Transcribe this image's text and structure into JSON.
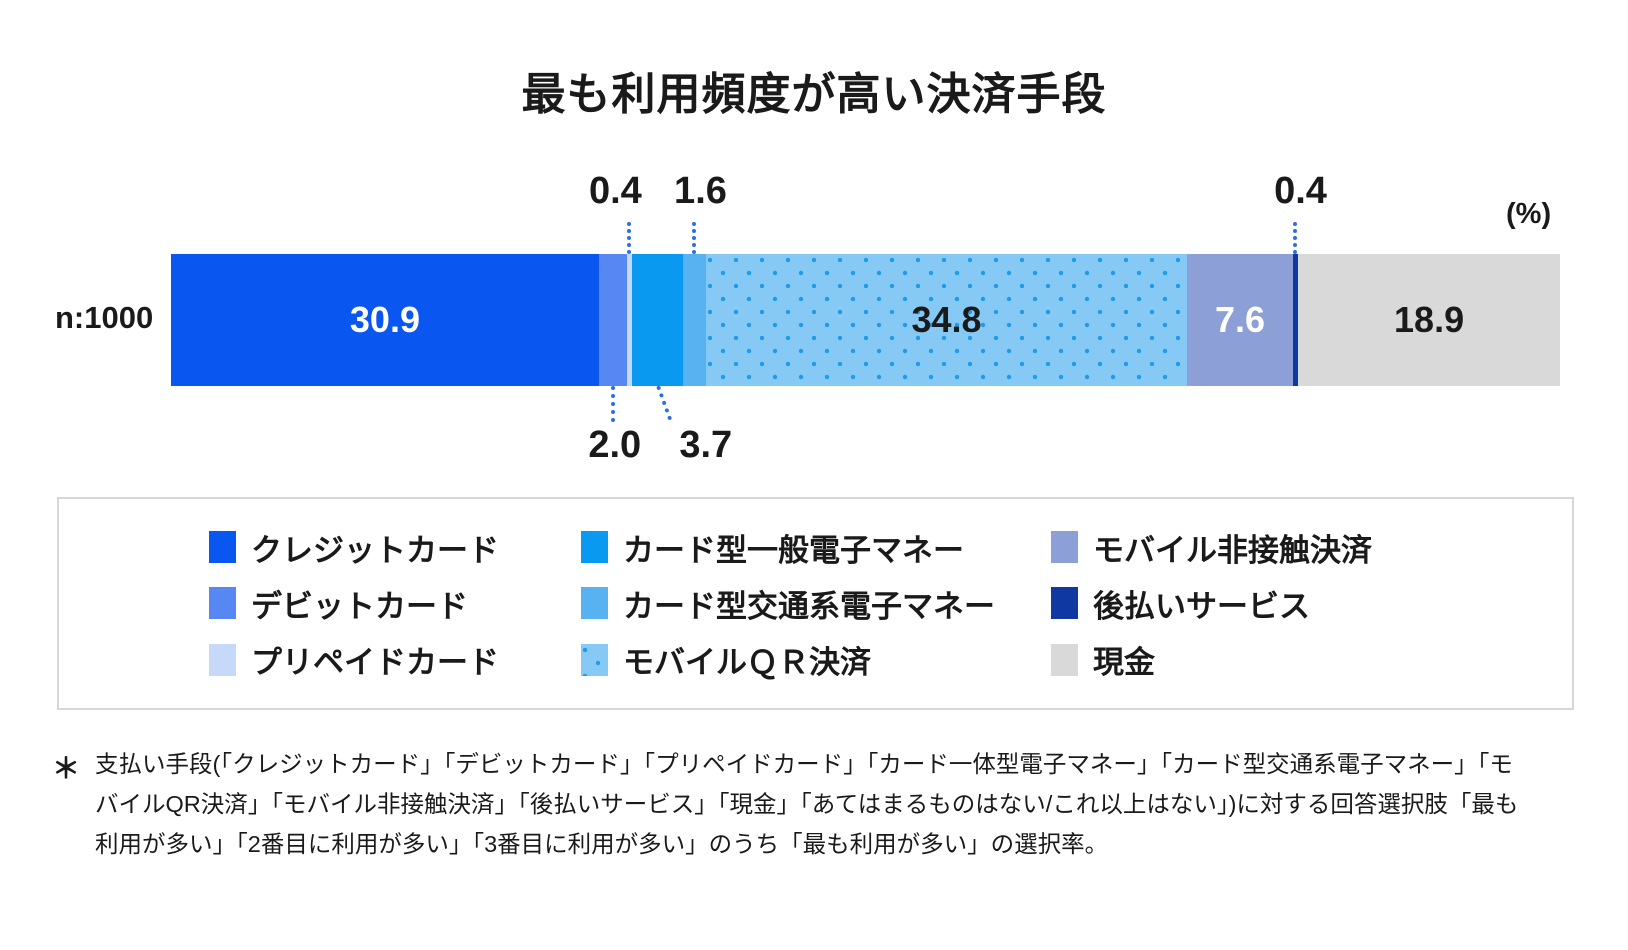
{
  "chart_data": {
    "type": "bar",
    "stacked": true,
    "orientation": "horizontal",
    "title": "最も利用頻度が高い決済手段",
    "sample_label": "n:1000",
    "unit_label": "(%)",
    "total": 100.3,
    "segments": [
      {
        "label": "クレジットカード",
        "value": 30.9,
        "display": "30.9",
        "color": "#0a56f0",
        "value_label": "inside",
        "value_color": "#ffffff"
      },
      {
        "label": "デビットカード",
        "value": 2.0,
        "display": "2.0",
        "color": "#5787f2",
        "value_label": "below"
      },
      {
        "label": "プリペイドカード",
        "value": 0.4,
        "display": "0.4",
        "color": "#c6d9f8",
        "value_label": "above"
      },
      {
        "label": "カード型一般電子マネー",
        "value": 3.7,
        "display": "3.7",
        "color": "#0a99f0",
        "value_label": "below"
      },
      {
        "label": "カード型交通系電子マネー",
        "value": 1.6,
        "display": "1.6",
        "color": "#58b2f2",
        "value_label": "above"
      },
      {
        "label": "モバイルＱＲ決済",
        "value": 34.8,
        "display": "34.8",
        "color": "#86c9f4",
        "pattern": "dots",
        "dot_color": "#1f9ce9",
        "value_label": "inside",
        "value_color": "#1a1a1a"
      },
      {
        "label": "モバイル非接触決済",
        "value": 7.6,
        "display": "7.6",
        "color": "#8c9fd6",
        "value_label": "inside",
        "value_color": "#ffffff"
      },
      {
        "label": "後払いサービス",
        "value": 0.4,
        "display": "0.4",
        "color": "#0f38a0",
        "value_label": "above"
      },
      {
        "label": "現金",
        "value": 18.9,
        "display": "18.9",
        "color": "#d9d9d9",
        "value_label": "inside",
        "value_color": "#1a1a1a"
      }
    ],
    "legend_position": "bottom",
    "grid": false
  },
  "footnote": {
    "mark": "＊",
    "lines": [
      "支払い手段(「クレジットカード」「デビットカード」「プリペイドカード」「カード一体型電子マネー」「カード型交通系電子マネー」「モ",
      "バイルQR決済」「モバイル非接触決済」「後払いサービス」「現金」「あてはまるものはない/これ以上はない」)に対する回答選択肢「最も",
      "利用が多い」「2番目に利用が多い」「3番目に利用が多い」のうち「最も利用が多い」の選択率。"
    ],
    "full_text": "支払い手段(「クレジットカード」「デビットカード」「プリペイドカード」「カード一体型電子マネー」「カード型交通系電子マネー」「モバイルQR決済」「モバイル非接触決済」「後払いサービス」「現金」「あてはまるものはない/これ以上はない」)に対する回答選択肢「最も利用が多い」「2番目に利用が多い」「3番目に利用が多い」のうち「最も利用が多い」の選択率。"
  },
  "colors": {
    "leader_line": "#2a6fe8",
    "legend_border": "#d7d7d7",
    "text": "#1a1a1a",
    "background": "#ffffff"
  }
}
